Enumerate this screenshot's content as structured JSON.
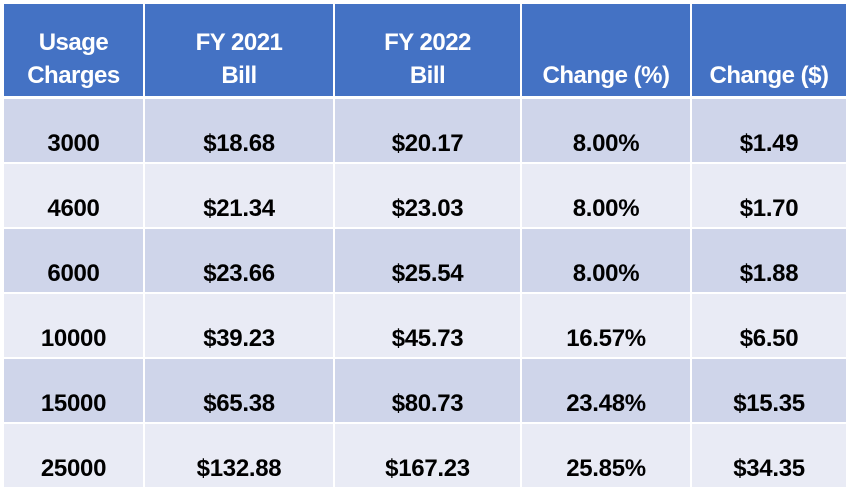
{
  "headers": [
    {
      "line1": "Usage",
      "line2": "Charges"
    },
    {
      "line1": "FY 2021",
      "line2": "Bill"
    },
    {
      "line1": "FY 2022",
      "line2": "Bill"
    },
    {
      "line1": "",
      "line2": "Change (%)"
    },
    {
      "line1": "",
      "line2": "Change ($)"
    }
  ],
  "rows": [
    {
      "usage": "3000",
      "fy2021": "$18.68",
      "fy2022": "$20.17",
      "change_pct": "8.00%",
      "change_usd": "$1.49"
    },
    {
      "usage": "4600",
      "fy2021": "$21.34",
      "fy2022": "$23.03",
      "change_pct": "8.00%",
      "change_usd": "$1.70"
    },
    {
      "usage": "6000",
      "fy2021": "$23.66",
      "fy2022": "$25.54",
      "change_pct": "8.00%",
      "change_usd": "$1.88"
    },
    {
      "usage": "10000",
      "fy2021": "$39.23",
      "fy2022": "$45.73",
      "change_pct": "16.57%",
      "change_usd": "$6.50"
    },
    {
      "usage": "15000",
      "fy2021": "$65.38",
      "fy2022": "$80.73",
      "change_pct": "23.48%",
      "change_usd": "$15.35"
    },
    {
      "usage": "25000",
      "fy2021": "$132.88",
      "fy2022": "$167.23",
      "change_pct": "25.85%",
      "change_usd": "$34.35"
    }
  ],
  "colors": {
    "header_bg": "#4472c4",
    "header_text": "#ffffff",
    "row_dark": "#cfd5ea",
    "row_light": "#e9ebf5"
  }
}
